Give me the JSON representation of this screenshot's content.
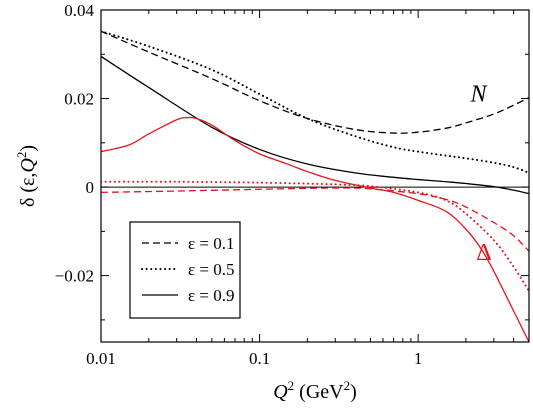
{
  "chart_data": {
    "type": "line",
    "title": "",
    "xlabel": {
      "var": "Q",
      "sup": "2",
      "unit_open": " (GeV",
      "unit_sup": "2",
      "unit_close": ")"
    },
    "ylabel": {
      "pre": "δ (ε,",
      "var": "Q",
      "sup": "2",
      "post": ")"
    },
    "x_scale": "log",
    "xlim": [
      0.01,
      5
    ],
    "ylim": [
      -0.035,
      0.04
    ],
    "x_ticks": [
      0.01,
      0.1,
      1
    ],
    "x_tick_labels": [
      "0.01",
      "0.1",
      "1"
    ],
    "y_ticks": [
      0.04,
      0.02,
      0,
      -0.02
    ],
    "y_tick_labels": [
      "0.04",
      "0.02",
      "0",
      "−0.02"
    ],
    "grid": false,
    "zero_line": true,
    "legend_position": "lower-left",
    "legend": [
      {
        "label": "ε = 0.1",
        "style": "dashed"
      },
      {
        "label": "ε = 0.5",
        "style": "dotted"
      },
      {
        "label": "ε = 0.9",
        "style": "solid"
      }
    ],
    "annotations": [
      {
        "text": "N",
        "color": "#000000",
        "x": 2.4,
        "y": 0.0193,
        "style": "italic"
      },
      {
        "text": "Δ",
        "color": "#e8141b",
        "x": 2.6,
        "y": -0.0165,
        "style": "normal"
      }
    ],
    "series": [
      {
        "group": "N",
        "epsilon": 0.1,
        "color": "#000000",
        "style": "dashed",
        "x": [
          0.01,
          0.02,
          0.05,
          0.1,
          0.2,
          0.4,
          0.7,
          1.0,
          1.5,
          2.0,
          3.0,
          4.0,
          5.0
        ],
        "y": [
          0.0352,
          0.0305,
          0.0245,
          0.0195,
          0.0155,
          0.013,
          0.0122,
          0.0124,
          0.0133,
          0.0145,
          0.0165,
          0.0185,
          0.0202
        ]
      },
      {
        "group": "N",
        "epsilon": 0.5,
        "color": "#000000",
        "style": "dotted",
        "x": [
          0.01,
          0.02,
          0.05,
          0.1,
          0.2,
          0.4,
          0.7,
          1.0,
          1.5,
          2.0,
          3.0,
          4.0,
          5.0
        ],
        "y": [
          0.0352,
          0.0318,
          0.0265,
          0.021,
          0.0155,
          0.0115,
          0.009,
          0.008,
          0.0071,
          0.0065,
          0.0055,
          0.0045,
          0.0032
        ]
      },
      {
        "group": "N",
        "epsilon": 0.9,
        "color": "#000000",
        "style": "solid",
        "x": [
          0.01,
          0.02,
          0.05,
          0.1,
          0.2,
          0.4,
          0.7,
          1.0,
          1.5,
          2.0,
          3.0,
          4.0,
          5.0
        ],
        "y": [
          0.0295,
          0.0225,
          0.0135,
          0.0085,
          0.0052,
          0.0032,
          0.0022,
          0.0017,
          0.0012,
          0.0008,
          0.0001,
          -0.0007,
          -0.0015
        ]
      },
      {
        "group": "Δ",
        "epsilon": 0.1,
        "color": "#e8141b",
        "style": "dashed",
        "x": [
          0.01,
          0.03,
          0.1,
          0.3,
          0.5,
          1.0,
          1.5,
          2.0,
          3.0,
          4.0,
          5.0
        ],
        "y": [
          -0.0012,
          -0.0009,
          -0.0005,
          -0.0002,
          -0.0004,
          -0.0015,
          -0.0028,
          -0.0045,
          -0.008,
          -0.011,
          -0.0145
        ]
      },
      {
        "group": "Δ",
        "epsilon": 0.5,
        "color": "#e8141b",
        "style": "dotted",
        "x": [
          0.01,
          0.03,
          0.1,
          0.3,
          0.5,
          1.0,
          1.5,
          2.0,
          3.0,
          4.0,
          5.0
        ],
        "y": [
          0.0012,
          0.0012,
          0.001,
          0.0006,
          0.0002,
          -0.0012,
          -0.003,
          -0.006,
          -0.012,
          -0.018,
          -0.0235
        ]
      },
      {
        "group": "Δ",
        "epsilon": 0.9,
        "color": "#e8141b",
        "style": "solid",
        "x": [
          0.01,
          0.015,
          0.02,
          0.03,
          0.035,
          0.04,
          0.05,
          0.07,
          0.1,
          0.15,
          0.2,
          0.3,
          0.5,
          0.7,
          1.0,
          1.5,
          2.0,
          2.5,
          3.0,
          4.0,
          5.0
        ],
        "y": [
          0.008,
          0.0095,
          0.012,
          0.0152,
          0.0157,
          0.0155,
          0.014,
          0.0105,
          0.0075,
          0.0052,
          0.0035,
          0.0015,
          -0.0002,
          -0.0012,
          -0.003,
          -0.0055,
          -0.0095,
          -0.014,
          -0.019,
          -0.028,
          -0.035
        ]
      }
    ]
  }
}
